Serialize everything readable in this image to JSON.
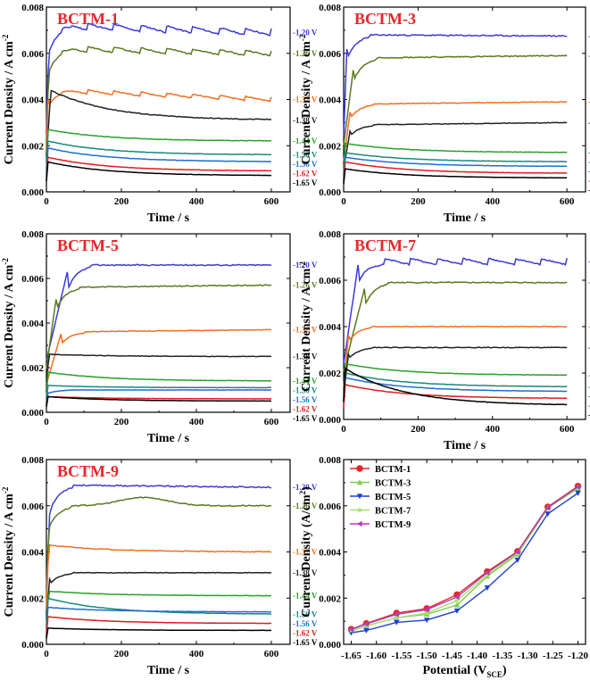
{
  "colors": {
    "-1.20 V": "#3b3bd9",
    "-1.26 V": "#5b7a1e",
    "-1.32 V": "#f07020",
    "-1.38 V": "#222222",
    "-1.44 V": "#2ca02c",
    "-1.50 V": "#1a8a7a",
    "-1.56 V": "#1f6fd0",
    "-1.62 V": "#e01d1d",
    "-1.65 V": "#000000"
  },
  "chart_data": [
    {
      "type": "line",
      "title": "BCTM-1",
      "xlabel": "Time / s",
      "ylabel": "Current Density / A cm-2",
      "xlim": [
        0,
        650
      ],
      "ylim": [
        0,
        0.008
      ],
      "xticks": [
        "0",
        "200",
        "400",
        "600"
      ],
      "yticks": [
        "0.000",
        "0.002",
        "0.004",
        "0.006",
        "0.008"
      ],
      "series": [
        {
          "name": "-1.20 V",
          "label": "-1.20 V",
          "final": 0.0069,
          "plateau": 0.0072,
          "rise": 8,
          "sawtooth": true
        },
        {
          "name": "-1.26 V",
          "label": "-1.26 V",
          "final": 0.006,
          "plateau": 0.0062,
          "rise": 8,
          "sawtooth": true
        },
        {
          "name": "-1.32 V",
          "label": "-1.32 V",
          "final": 0.004,
          "plateau": 0.0044,
          "rise": 5,
          "sawtooth": true
        },
        {
          "name": "-1.38 V",
          "label": "-1.38 V",
          "final": 0.0031,
          "plateau": 0.0044,
          "rise": 12,
          "decay": true
        },
        {
          "name": "-1.44 V",
          "label": "-1.44 V",
          "final": 0.0022,
          "plateau": 0.0027,
          "rise": 4,
          "decay": true
        },
        {
          "name": "-1.50 V",
          "label": "-1.50 V",
          "final": 0.0016,
          "plateau": 0.0022,
          "rise": 4,
          "decay": true
        },
        {
          "name": "-1.56 V",
          "label": "-1.56 V",
          "final": 0.0013,
          "plateau": 0.0019,
          "rise": 4,
          "decay": true
        },
        {
          "name": "-1.62 V",
          "label": "-1.62 V",
          "final": 0.0009,
          "plateau": 0.0015,
          "rise": 4,
          "decay": true
        },
        {
          "name": "-1.65 V",
          "label": "-1.65 V",
          "final": 0.0007,
          "plateau": 0.0013,
          "rise": 4,
          "decay": true
        }
      ]
    },
    {
      "type": "line",
      "title": "BCTM-3",
      "xlabel": "Time / s",
      "ylabel": "Current Density / A cm-2",
      "xlim": [
        0,
        650
      ],
      "ylim": [
        0,
        0.008
      ],
      "xticks": [
        "0",
        "200",
        "400",
        "600"
      ],
      "yticks": [
        "0.000",
        "0.002",
        "0.004",
        "0.006",
        "0.008"
      ],
      "series": [
        {
          "name": "-1.20 V",
          "label": "-1.20 V",
          "final": 0.00675,
          "plateau": 0.0068,
          "rise": 10
        },
        {
          "name": "-1.26 V",
          "label": "-1.26 V",
          "final": 0.0059,
          "plateau": 0.0058,
          "rise": 30
        },
        {
          "name": "-1.32 V",
          "label": "-1.32 V",
          "final": 0.0039,
          "plateau": 0.0038,
          "rise": 20
        },
        {
          "name": "-1.38 V",
          "label": "-1.38 V",
          "final": 0.003,
          "plateau": 0.0029,
          "rise": 20
        },
        {
          "name": "-1.44 V",
          "label": "-1.44 V",
          "final": 0.0017,
          "plateau": 0.0021,
          "rise": 4,
          "decay": true
        },
        {
          "name": "-1.50 V",
          "label": "-1.50 V",
          "final": 0.0013,
          "plateau": 0.0017,
          "rise": 4,
          "decay": true
        },
        {
          "name": "-1.56 V",
          "label": "-1.56 V",
          "final": 0.0011,
          "plateau": 0.0015,
          "rise": 4,
          "decay": true
        },
        {
          "name": "-1.62 V",
          "label": "-1.62 V",
          "final": 0.0008,
          "plateau": 0.0013,
          "rise": 4,
          "decay": true
        },
        {
          "name": "-1.65 V",
          "label": "-1.65 V",
          "final": 0.0006,
          "plateau": 0.001,
          "rise": 4,
          "decay": true
        }
      ]
    },
    {
      "type": "line",
      "title": "BCTM-5",
      "xlabel": "Time / s",
      "ylabel": "Current Density / A cm-2",
      "xlim": [
        0,
        650
      ],
      "ylim": [
        0,
        0.008
      ],
      "xticks": [
        "0",
        "200",
        "400",
        "600"
      ],
      "yticks": [
        "0.000",
        "0.002",
        "0.004",
        "0.006",
        "0.008"
      ],
      "series": [
        {
          "name": "-1.20 V",
          "label": "-1.20 V",
          "final": 0.0066,
          "plateau": 0.0066,
          "rise": 60
        },
        {
          "name": "-1.26 V",
          "label": "-1.26 V",
          "final": 0.0057,
          "plateau": 0.0056,
          "rise": 30
        },
        {
          "name": "-1.32 V",
          "label": "-1.32 V",
          "final": 0.0037,
          "plateau": 0.0036,
          "rise": 40
        },
        {
          "name": "-1.38 V",
          "label": "-1.38 V",
          "final": 0.0025,
          "plateau": 0.0026,
          "rise": 6,
          "decay": true
        },
        {
          "name": "-1.44 V",
          "label": "-1.44 V",
          "final": 0.0014,
          "plateau": 0.0018,
          "rise": 4,
          "decay": true
        },
        {
          "name": "-1.50 V",
          "label": "-1.50 V",
          "final": 0.0011,
          "plateau": 0.0012,
          "rise": 4,
          "decay": true
        },
        {
          "name": "-1.56 V",
          "label": "-1.56 V",
          "final": 0.001,
          "plateau": 0.001,
          "rise": 4
        },
        {
          "name": "-1.62 V",
          "label": "-1.62 V",
          "final": 0.0006,
          "plateau": 0.0007,
          "rise": 4,
          "decay": true
        },
        {
          "name": "-1.65 V",
          "label": "-1.65 V",
          "final": 0.0005,
          "plateau": 0.0007,
          "rise": 4,
          "decay": true
        }
      ]
    },
    {
      "type": "line",
      "title": "BCTM-7",
      "xlabel": "Time / s",
      "ylabel": "Current Density / A cm-2",
      "xlim": [
        0,
        650
      ],
      "ylim": [
        0,
        0.008
      ],
      "xticks": [
        "0",
        "200",
        "400",
        "600"
      ],
      "yticks": [
        "0.000",
        "0.002",
        "0.004",
        "0.006",
        "0.008"
      ],
      "series": [
        {
          "name": "-1.20 V",
          "label": "-1.20 V",
          "final": 0.0068,
          "plateau": 0.0068,
          "rise": 40,
          "sawtooth": true
        },
        {
          "name": "-1.26 V",
          "label": "-1.26 V",
          "final": 0.0059,
          "plateau": 0.0059,
          "rise": 60
        },
        {
          "name": "-1.32 V",
          "label": "-1.32 V",
          "final": 0.004,
          "plateau": 0.004,
          "rise": 15
        },
        {
          "name": "-1.38 V",
          "label": "-1.38 V",
          "final": 0.0031,
          "plateau": 0.0031,
          "rise": 15
        },
        {
          "name": "-1.44 V",
          "label": "-1.44 V",
          "final": 0.0019,
          "plateau": 0.0024,
          "rise": 4,
          "decay": true
        },
        {
          "name": "-1.50 V",
          "label": "-1.50 V",
          "final": 0.0014,
          "plateau": 0.002,
          "rise": 4,
          "decay": true
        },
        {
          "name": "-1.56 V",
          "label": "-1.56 V",
          "final": 0.0012,
          "plateau": 0.0018,
          "rise": 4,
          "decay": true
        },
        {
          "name": "-1.62 V",
          "label": "-1.62 V",
          "final": 0.0009,
          "plateau": 0.0015,
          "rise": 4,
          "decay": true
        },
        {
          "name": "-1.65 V",
          "label": "-1.65 V",
          "final": 0.0006,
          "plateau": 0.0022,
          "rise": 4,
          "decay": true
        }
      ]
    },
    {
      "type": "line",
      "title": "BCTM-9",
      "xlabel": "Time / s",
      "ylabel": "Current Density / A cm-2",
      "xlim": [
        0,
        650
      ],
      "ylim": [
        0,
        0.008
      ],
      "xticks": [
        "0",
        "200",
        "400",
        "600"
      ],
      "yticks": [
        "0.000",
        "0.002",
        "0.004",
        "0.006",
        "0.008"
      ],
      "series": [
        {
          "name": "-1.20 V",
          "label": "-1.20 V",
          "final": 0.0068,
          "plateau": 0.0069,
          "rise": 12
        },
        {
          "name": "-1.26 V",
          "label": "-1.26 V",
          "final": 0.006,
          "plateau": 0.006,
          "rise": 8,
          "hump": true
        },
        {
          "name": "-1.32 V",
          "label": "-1.32 V",
          "final": 0.004,
          "plateau": 0.0043,
          "rise": 6,
          "decay": true
        },
        {
          "name": "-1.38 V",
          "label": "-1.38 V",
          "final": 0.0031,
          "plateau": 0.0031,
          "rise": 10
        },
        {
          "name": "-1.44 V",
          "label": "-1.44 V",
          "final": 0.0021,
          "plateau": 0.0023,
          "rise": 6,
          "decay": true
        },
        {
          "name": "-1.50 V",
          "label": "-1.50 V",
          "final": 0.0013,
          "plateau": 0.002,
          "rise": 4,
          "decay": true
        },
        {
          "name": "-1.56 V",
          "label": "-1.56 V",
          "final": 0.0014,
          "plateau": 0.0016,
          "rise": 4,
          "decay": true
        },
        {
          "name": "-1.62 V",
          "label": "-1.62 V",
          "final": 0.0009,
          "plateau": 0.0012,
          "rise": 4,
          "decay": true
        },
        {
          "name": "-1.65 V",
          "label": "-1.65 V",
          "final": 0.0006,
          "plateau": 0.0007,
          "rise": 4,
          "decay": true
        }
      ]
    },
    {
      "type": "line",
      "title": "",
      "xlabel": "Potential (V",
      "xlabel_sub": "SCE",
      "xlabel_tail": ")",
      "ylabel": "Current Density (A/cm2)",
      "xlim": [
        -1.665,
        -1.185
      ],
      "ylim": [
        0,
        0.008
      ],
      "xticks": [
        "-1.65",
        "-1.60",
        "-1.55",
        "-1.50",
        "-1.45",
        "-1.40",
        "-1.35",
        "-1.30",
        "-1.25",
        "-1.20"
      ],
      "xtick_values": [
        -1.65,
        -1.6,
        -1.55,
        -1.5,
        -1.45,
        -1.4,
        -1.35,
        -1.3,
        -1.25,
        -1.2
      ],
      "yticks": [
        "0.000",
        "0.002",
        "0.004",
        "0.006",
        "0.008"
      ],
      "x": [
        -1.65,
        -1.62,
        -1.56,
        -1.5,
        -1.44,
        -1.38,
        -1.32,
        -1.26,
        -1.2
      ],
      "series": [
        {
          "name": "BCTM-1",
          "color": "#e8262a",
          "marker": "circle",
          "values": [
            0.00065,
            0.0009,
            0.00135,
            0.00155,
            0.00215,
            0.00315,
            0.00402,
            0.00595,
            0.00685
          ]
        },
        {
          "name": "BCTM-3",
          "color": "#7ad14a",
          "marker": "triangle-up",
          "values": [
            0.00058,
            0.0008,
            0.00115,
            0.0013,
            0.0017,
            0.00295,
            0.0039,
            0.0059,
            0.00675
          ]
        },
        {
          "name": "BCTM-5",
          "color": "#1f3fd0",
          "marker": "triangle-down",
          "values": [
            0.0005,
            0.0006,
            0.00095,
            0.00105,
            0.00145,
            0.00245,
            0.00365,
            0.00565,
            0.00655
          ]
        },
        {
          "name": "BCTM-7",
          "color": "#a8e070",
          "marker": "star",
          "values": [
            0.0006,
            0.0008,
            0.00115,
            0.00135,
            0.0019,
            0.003,
            0.00395,
            0.0059,
            0.0068
          ]
        },
        {
          "name": "BCTM-9",
          "color": "#b040b0",
          "marker": "triangle-left",
          "values": [
            0.00065,
            0.00088,
            0.0013,
            0.0015,
            0.00205,
            0.0031,
            0.004,
            0.00592,
            0.00682
          ]
        }
      ]
    }
  ]
}
